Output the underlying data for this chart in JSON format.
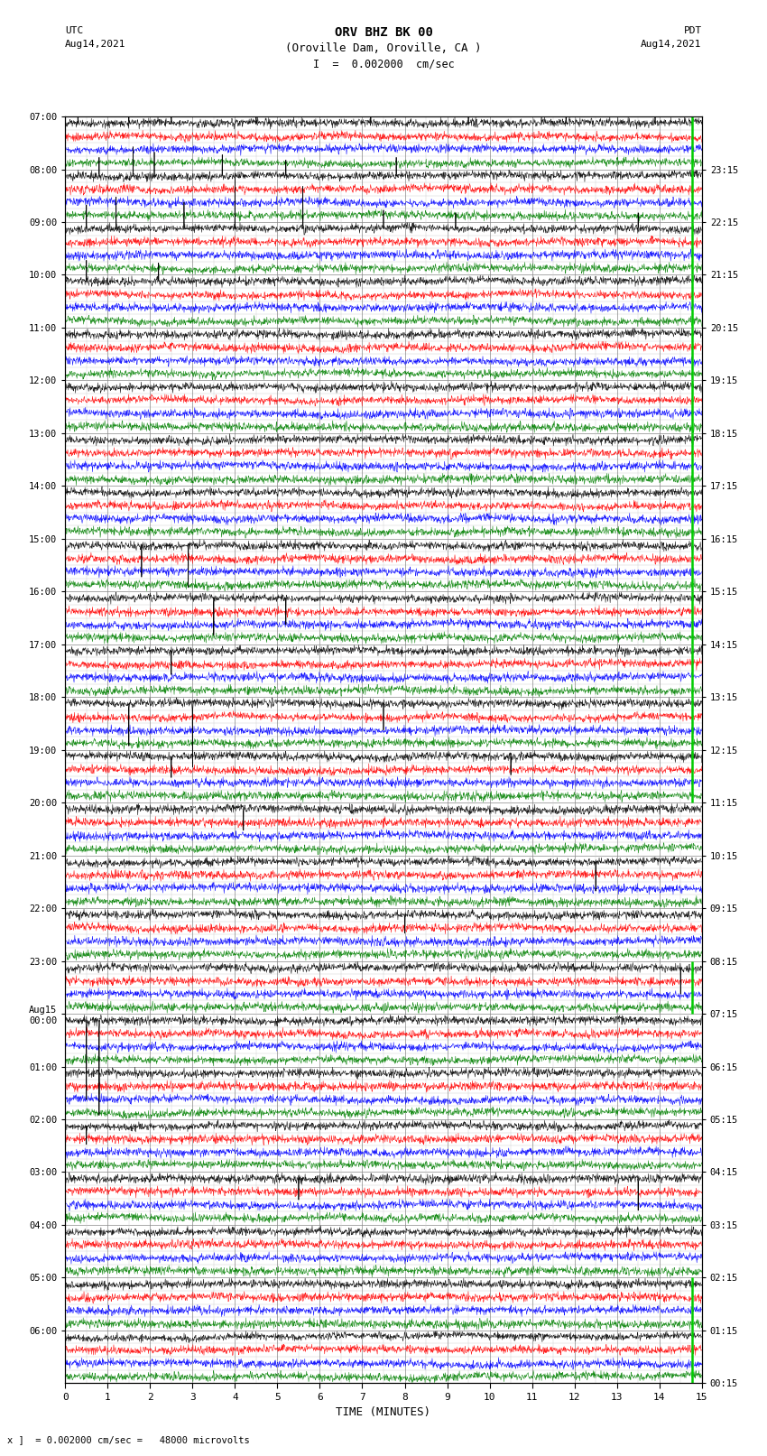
{
  "title_line1": "ORV BHZ BK 00",
  "title_line2": "(Oroville Dam, Oroville, CA )",
  "title_line3": "I  =  0.002000  cm/sec",
  "label_utc": "UTC",
  "label_utc_date": "Aug14,2021",
  "label_pdt": "PDT",
  "label_pdt_date": "Aug14,2021",
  "xlabel": "TIME (MINUTES)",
  "footnote": "x ]  = 0.002000 cm/sec =   48000 microvolts",
  "utc_times": [
    "07:00",
    "08:00",
    "09:00",
    "10:00",
    "11:00",
    "12:00",
    "13:00",
    "14:00",
    "15:00",
    "16:00",
    "17:00",
    "18:00",
    "19:00",
    "20:00",
    "21:00",
    "22:00",
    "23:00",
    "Aug15\n00:00",
    "01:00",
    "02:00",
    "03:00",
    "04:00",
    "05:00",
    "06:00"
  ],
  "pdt_times": [
    "00:15",
    "01:15",
    "02:15",
    "03:15",
    "04:15",
    "05:15",
    "06:15",
    "07:15",
    "08:15",
    "09:15",
    "10:15",
    "11:15",
    "12:15",
    "13:15",
    "14:15",
    "15:15",
    "16:15",
    "17:15",
    "18:15",
    "19:15",
    "20:15",
    "21:15",
    "22:15",
    "23:15"
  ],
  "n_rows": 24,
  "n_minutes": 15,
  "n_channels": 4,
  "bg_color": "#ffffff",
  "grid_major_color": "#888888",
  "grid_minor_color": "#cccccc",
  "trace_colors": [
    "black",
    "red",
    "blue",
    "green"
  ],
  "green_bar_color": "#00cc00",
  "fig_width": 8.5,
  "fig_height": 16.13,
  "dpi": 100,
  "row_activity": [
    {
      "noise": 0.008,
      "spike_prob": 0.004,
      "spike_amp": 8.0
    },
    {
      "noise": 0.008,
      "spike_prob": 0.004,
      "spike_amp": 8.0
    },
    {
      "noise": 0.01,
      "spike_prob": 0.005,
      "spike_amp": 10.0
    },
    {
      "noise": 0.02,
      "spike_prob": 0.006,
      "spike_amp": 12.0
    },
    {
      "noise": 0.06,
      "spike_prob": 0.008,
      "spike_amp": 15.0
    },
    {
      "noise": 0.12,
      "spike_prob": 0.01,
      "spike_amp": 15.0
    },
    {
      "noise": 0.15,
      "spike_prob": 0.01,
      "spike_amp": 15.0
    },
    {
      "noise": 0.13,
      "spike_prob": 0.01,
      "spike_amp": 15.0
    },
    {
      "noise": 0.05,
      "spike_prob": 0.007,
      "spike_amp": 12.0
    },
    {
      "noise": 0.035,
      "spike_prob": 0.007,
      "spike_amp": 12.0
    },
    {
      "noise": 0.02,
      "spike_prob": 0.006,
      "spike_amp": 12.0
    },
    {
      "noise": 0.01,
      "spike_prob": 0.005,
      "spike_amp": 10.0
    },
    {
      "noise": 0.008,
      "spike_prob": 0.005,
      "spike_amp": 10.0
    },
    {
      "noise": 0.008,
      "spike_prob": 0.004,
      "spike_amp": 10.0
    },
    {
      "noise": 0.007,
      "spike_prob": 0.004,
      "spike_amp": 9.0
    },
    {
      "noise": 0.007,
      "spike_prob": 0.004,
      "spike_amp": 9.0
    },
    {
      "noise": 0.006,
      "spike_prob": 0.003,
      "spike_amp": 8.0
    },
    {
      "noise": 0.005,
      "spike_prob": 0.003,
      "spike_amp": 8.0
    },
    {
      "noise": 0.005,
      "spike_prob": 0.003,
      "spike_amp": 8.0
    },
    {
      "noise": 0.005,
      "spike_prob": 0.003,
      "spike_amp": 8.0
    },
    {
      "noise": 0.005,
      "spike_prob": 0.003,
      "spike_amp": 8.0
    },
    {
      "noise": 0.005,
      "spike_prob": 0.003,
      "spike_amp": 8.0
    },
    {
      "noise": 0.004,
      "spike_prob": 0.002,
      "spike_amp": 6.0
    },
    {
      "noise": 0.004,
      "spike_prob": 0.002,
      "spike_amp": 6.0
    }
  ],
  "channel_noise_scale": [
    1.0,
    0.6,
    0.4,
    0.3
  ],
  "channel_spike_scale": [
    1.0,
    0.5,
    0.3,
    0.25
  ]
}
